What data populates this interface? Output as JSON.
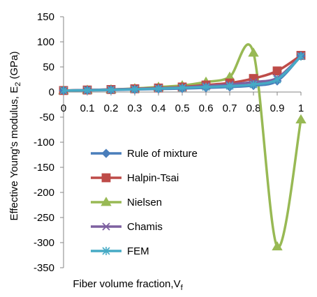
{
  "chart_data": {
    "type": "line",
    "xlabel": "Fiber volume fraction,V",
    "xlabel_sub": "f",
    "ylabel": "Effective Young's modulus, E",
    "ylabel_sub": "2",
    "ylabel_unit": " (GPa)",
    "x": [
      0,
      0.1,
      0.2,
      0.3,
      0.4,
      0.5,
      0.6,
      0.7,
      0.8,
      0.9,
      1
    ],
    "x_tick_labels": [
      "0",
      "0.1",
      "0.2",
      "0.3",
      "0.4",
      "0.5",
      "0.6",
      "0.7",
      "0.8",
      "0.9",
      "1"
    ],
    "ylim": [
      -350,
      150
    ],
    "y_ticks": [
      150,
      100,
      50,
      0,
      -50,
      -100,
      -150,
      -200,
      -250,
      -300,
      -350
    ],
    "grid": false,
    "legend_position": "inside-bottom-left",
    "series": [
      {
        "name": "Rule of mixture",
        "color": "#4a7ebb",
        "marker": "diamond",
        "values": [
          3,
          3.5,
          4,
          5,
          6,
          7,
          8.5,
          10,
          13,
          22,
          72
        ]
      },
      {
        "name": "Halpin-Tsai",
        "color": "#be4b48",
        "marker": "square",
        "values": [
          3,
          4,
          5,
          6.5,
          8,
          10,
          14,
          18,
          27,
          42,
          73
        ]
      },
      {
        "name": "Nielsen",
        "color": "#98b954",
        "marker": "triangle",
        "values": [
          3,
          4,
          5,
          7,
          10,
          13,
          20,
          30,
          78,
          -308,
          -55
        ]
      },
      {
        "name": "Chamis",
        "color": "#7d60a0",
        "marker": "x",
        "values": [
          3,
          4,
          5,
          6,
          7.5,
          9,
          12,
          15,
          20,
          28,
          72
        ]
      },
      {
        "name": "FEM",
        "color": "#46aac5",
        "marker": "star",
        "values": [
          3,
          3.5,
          4.5,
          5.5,
          7,
          8.5,
          10,
          12,
          15,
          25,
          71
        ]
      }
    ]
  }
}
